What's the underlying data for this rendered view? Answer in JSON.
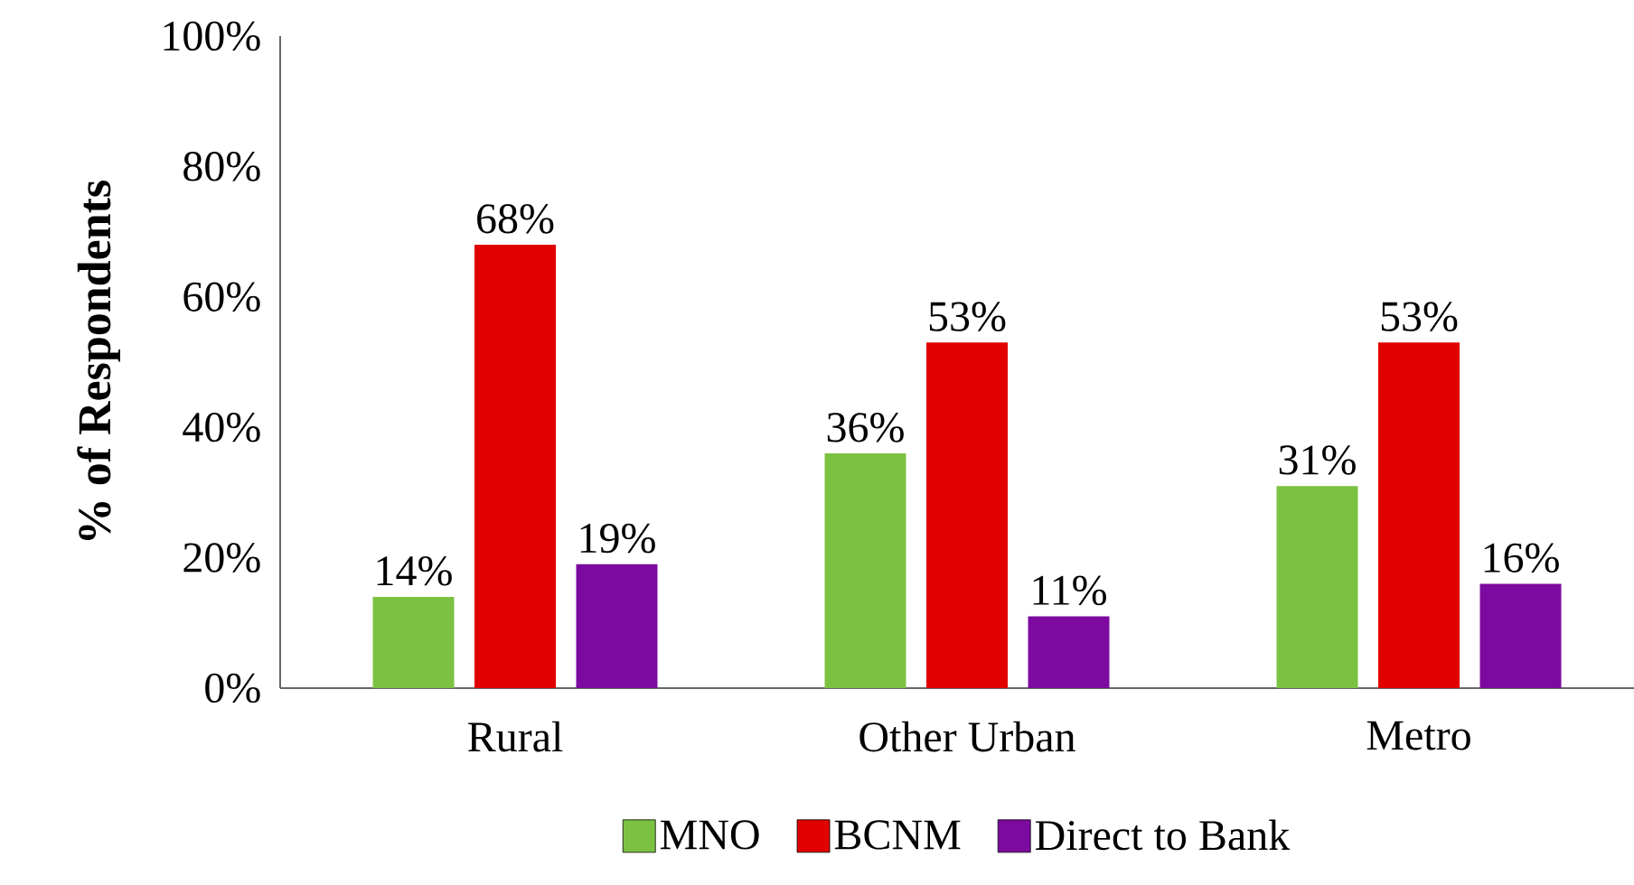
{
  "chart_data": {
    "type": "bar",
    "ylabel": "% of Respondents",
    "categories": [
      "Rural",
      "Other Urban",
      "Metro"
    ],
    "series": [
      {
        "name": "MNO",
        "color": "#7cc242",
        "values": [
          14,
          36,
          31
        ],
        "value_labels": [
          "14%",
          "36%",
          "31%"
        ]
      },
      {
        "name": "BCNM",
        "color": "#e00000",
        "values": [
          68,
          53,
          53
        ],
        "value_labels": [
          "68%",
          "53%",
          "53%"
        ]
      },
      {
        "name": "Direct to Bank",
        "color": "#7d0aa0",
        "values": [
          19,
          11,
          16
        ],
        "value_labels": [
          "19%",
          "11%",
          "16%"
        ]
      }
    ],
    "ylim": [
      0,
      100
    ],
    "yticks": [
      {
        "value": 0,
        "label": "0%"
      },
      {
        "value": 20,
        "label": "20%"
      },
      {
        "value": 40,
        "label": "40%"
      },
      {
        "value": 60,
        "label": "60%"
      },
      {
        "value": 80,
        "label": "80%"
      },
      {
        "value": 100,
        "label": "100%"
      }
    ],
    "grid": false,
    "legend": "bottom"
  }
}
